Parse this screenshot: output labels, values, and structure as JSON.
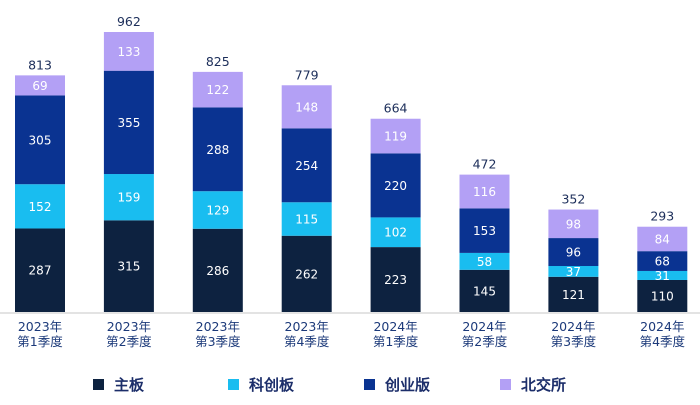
{
  "chart_data": {
    "type": "bar",
    "stacked": true,
    "categories": [
      "2023年\n第1季度",
      "2023年\n第2季度",
      "2023年\n第3季度",
      "2023年\n第4季度",
      "2024年\n第1季度",
      "2024年\n第2季度",
      "2024年\n第3季度",
      "2024年\n第4季度"
    ],
    "series": [
      {
        "name": "主板",
        "color": "#0d2240",
        "values": [
          287,
          315,
          286,
          262,
          223,
          145,
          121,
          110
        ]
      },
      {
        "name": "科创板",
        "color": "#19bdf0",
        "values": [
          152,
          159,
          129,
          115,
          102,
          58,
          37,
          31
        ]
      },
      {
        "name": "创业版",
        "color": "#0a3391",
        "values": [
          305,
          355,
          288,
          254,
          220,
          153,
          96,
          68
        ]
      },
      {
        "name": "北交所",
        "color": "#b3a0f5",
        "values": [
          69,
          133,
          122,
          148,
          119,
          116,
          98,
          84
        ]
      }
    ],
    "totals": [
      813,
      962,
      825,
      779,
      664,
      472,
      352,
      293
    ],
    "ylim": [
      0,
      962
    ],
    "grid": false,
    "legend_position": "bottom"
  }
}
